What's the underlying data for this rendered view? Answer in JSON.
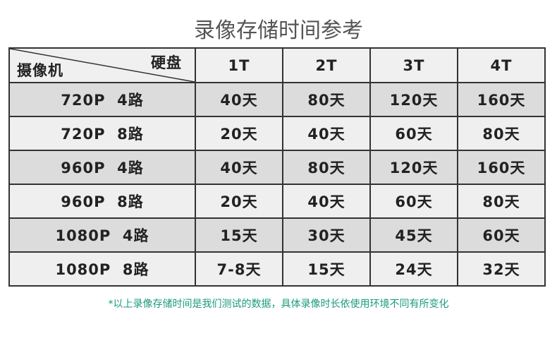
{
  "title": "录像存储时间参考",
  "corner": {
    "row_label": "摄像机",
    "col_label": "硬盘"
  },
  "columns": [
    "1T",
    "2T",
    "3T",
    "4T"
  ],
  "rows": [
    {
      "label": "720P  4路",
      "values": [
        "40天",
        "80天",
        "120天",
        "160天"
      ]
    },
    {
      "label": "720P  8路",
      "values": [
        "20天",
        "40天",
        "60天",
        "80天"
      ]
    },
    {
      "label": "960P  4路",
      "values": [
        "40天",
        "80天",
        "120天",
        "160天"
      ]
    },
    {
      "label": "960P  8路",
      "values": [
        "20天",
        "40天",
        "60天",
        "80天"
      ]
    },
    {
      "label": "1080P  4路",
      "values": [
        "15天",
        "30天",
        "45天",
        "60天"
      ]
    },
    {
      "label": "1080P  8路",
      "values": [
        "7-8天",
        "15天",
        "24天",
        "32天"
      ]
    }
  ],
  "note": "*以上录像存储时间是我们测试的数据，具体录像时长依使用环境不同有所变化",
  "colors": {
    "note": "#1a9a7e",
    "row_dark": "#dcdcdc",
    "row_light": "#efefef"
  }
}
